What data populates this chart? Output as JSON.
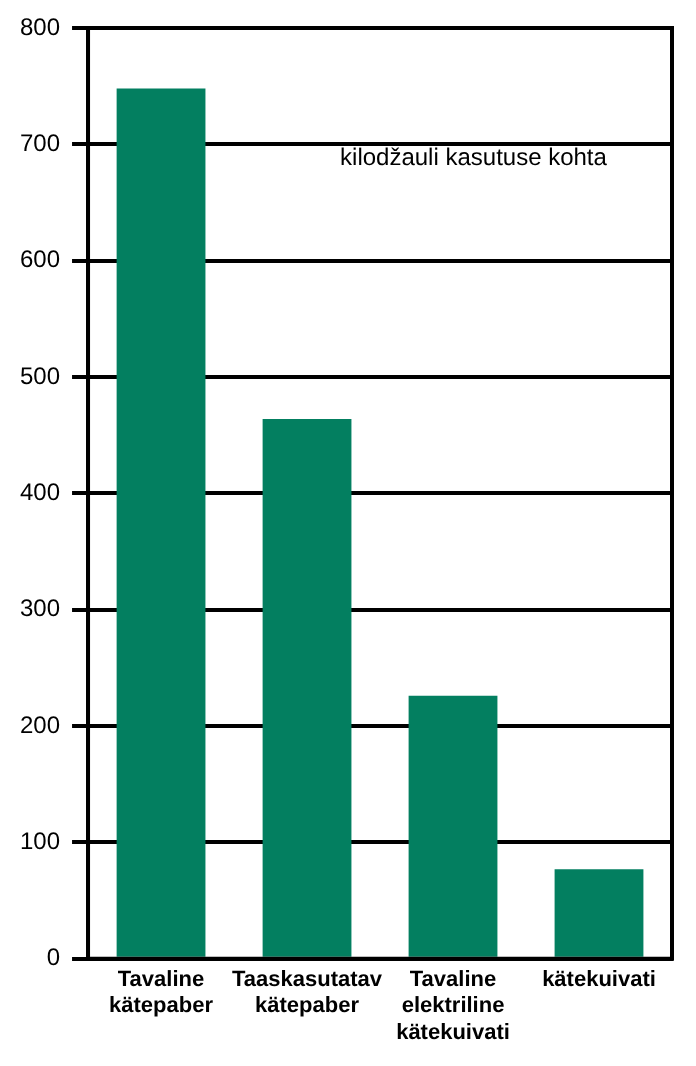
{
  "chart_data": {
    "type": "bar",
    "categories": [
      "Tavaline kätepaber",
      "Taaskasutatav kätepaber",
      "Tavaline elektriline kätekuivati",
      "kätekuivati"
    ],
    "values": [
      748,
      464,
      226,
      77
    ],
    "color": "#037f60",
    "ylim": [
      0,
      800
    ],
    "yticks": [
      0,
      100,
      200,
      300,
      400,
      500,
      600,
      700,
      800
    ],
    "grid": "y",
    "legend": false,
    "annotations": [
      "kilodžauli kasutuse kohta"
    ]
  }
}
